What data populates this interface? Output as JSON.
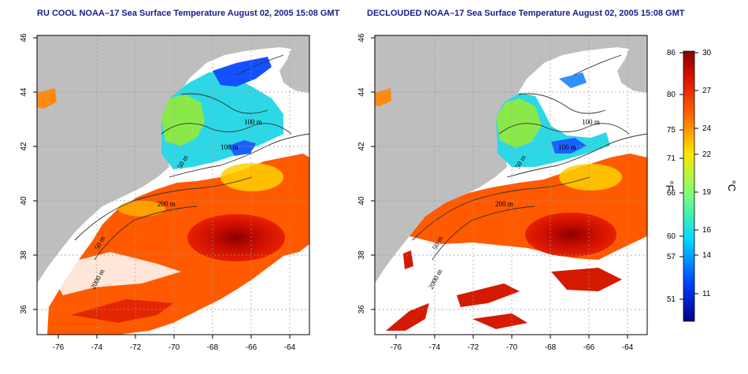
{
  "titles": {
    "left": "RU COOL NOAA–17 Sea Surface Temperature August 02, 2005 15:08 GMT",
    "right": "DECLOUDED NOAA–17 Sea Surface Temperature August 02, 2005 15:08 GMT"
  },
  "axes": {
    "x_ticks": [
      "-76",
      "-74",
      "-72",
      "-70",
      "-68",
      "-66",
      "-64"
    ],
    "y_ticks": [
      "36",
      "38",
      "40",
      "42",
      "44",
      "46"
    ]
  },
  "isobaths": {
    "left": [
      "100 m",
      "100 m",
      "50 m",
      "200 m",
      "50 m",
      "2000 m"
    ],
    "right": [
      "100 m",
      "100 m",
      "50 m",
      "200 m",
      "50 m",
      "2000 m"
    ]
  },
  "colorbar": {
    "fahrenheit_ticks": [
      "86",
      "80",
      "75",
      "71",
      "66",
      "60",
      "57",
      "51"
    ],
    "celsius_ticks": [
      "30",
      "27",
      "24",
      "22",
      "19",
      "16",
      "14",
      "11"
    ],
    "unit_f": "°F",
    "unit_c": "°C"
  },
  "colors": {
    "land": "#bebebe",
    "cloud": "#ffffff",
    "title": "#1a1a8c",
    "scale_hot": "#8b0000",
    "scale_cold": "#00008b"
  }
}
